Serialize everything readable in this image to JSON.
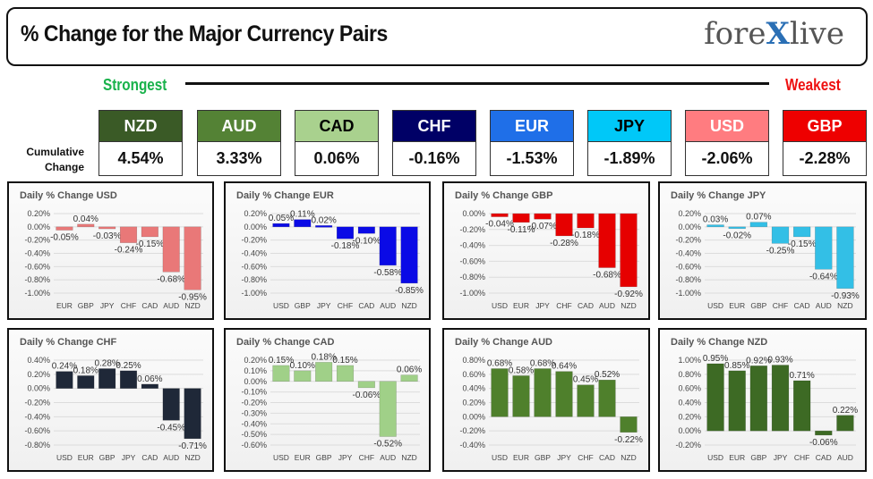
{
  "header": {
    "title": "% Change for the Major Currency Pairs",
    "logo": "forexlive"
  },
  "ranking": {
    "strongest_label": "Strongest",
    "weakest_label": "Weakest",
    "row_label": "Cumulative Change",
    "currencies": [
      {
        "code": "NZD",
        "value": "4.54%",
        "color": "#3a5a26",
        "text_color": "#ffffff"
      },
      {
        "code": "AUD",
        "value": "3.33%",
        "color": "#548235",
        "text_color": "#ffffff"
      },
      {
        "code": "CAD",
        "value": "0.06%",
        "color": "#a9d18e",
        "text_color": "#000000"
      },
      {
        "code": "CHF",
        "value": "-0.16%",
        "color": "#000066",
        "text_color": "#ffffff"
      },
      {
        "code": "EUR",
        "value": "-1.53%",
        "color": "#1f6fe8",
        "text_color": "#ffffff"
      },
      {
        "code": "JPY",
        "value": "-1.89%",
        "color": "#00c8f8",
        "text_color": "#000000"
      },
      {
        "code": "USD",
        "value": "-2.06%",
        "color": "#ff7c80",
        "text_color": "#ffffff"
      },
      {
        "code": "GBP",
        "value": "-2.28%",
        "color": "#ee0000",
        "text_color": "#ffffff"
      }
    ]
  },
  "chart_data": [
    {
      "type": "bar",
      "title": "Daily % Change USD",
      "categories": [
        "EUR",
        "GBP",
        "JPY",
        "CHF",
        "CAD",
        "AUD",
        "NZD"
      ],
      "values": [
        -0.05,
        0.04,
        -0.03,
        -0.24,
        -0.15,
        -0.68,
        -0.95
      ],
      "ylim": [
        -1.0,
        0.2
      ],
      "ystep": 0.2,
      "color": "#e97878",
      "grid": true
    },
    {
      "type": "bar",
      "title": "Daily % Change EUR",
      "categories": [
        "USD",
        "GBP",
        "JPY",
        "CHF",
        "CAD",
        "AUD",
        "NZD"
      ],
      "values": [
        0.05,
        0.11,
        0.02,
        -0.18,
        -0.1,
        -0.58,
        -0.85
      ],
      "ylim": [
        -1.0,
        0.2
      ],
      "ystep": 0.2,
      "color": "#0a0ae6",
      "grid": true
    },
    {
      "type": "bar",
      "title": "Daily % Change GBP",
      "categories": [
        "USD",
        "EUR",
        "JPY",
        "CHF",
        "CAD",
        "AUD",
        "NZD"
      ],
      "values": [
        -0.04,
        -0.11,
        -0.07,
        -0.28,
        -0.18,
        -0.68,
        -0.92
      ],
      "ylim": [
        -1.0,
        0.0
      ],
      "ystep": 0.2,
      "color": "#e60000",
      "grid": true
    },
    {
      "type": "bar",
      "title": "Daily % Change JPY",
      "categories": [
        "USD",
        "EUR",
        "GBP",
        "CHF",
        "CAD",
        "AUD",
        "NZD"
      ],
      "values": [
        0.03,
        -0.02,
        0.07,
        -0.25,
        -0.15,
        -0.64,
        -0.93
      ],
      "ylim": [
        -1.0,
        0.2
      ],
      "ystep": 0.2,
      "color": "#33bfe6",
      "grid": true
    },
    {
      "type": "bar",
      "title": "Daily % Change CHF",
      "categories": [
        "USD",
        "EUR",
        "GBP",
        "JPY",
        "CAD",
        "AUD",
        "NZD"
      ],
      "values": [
        0.24,
        0.18,
        0.28,
        0.25,
        0.06,
        -0.45,
        -0.71
      ],
      "ylim": [
        -0.8,
        0.4
      ],
      "ystep": 0.2,
      "color": "#1f2838",
      "grid": true
    },
    {
      "type": "bar",
      "title": "Daily % Change CAD",
      "categories": [
        "USD",
        "EUR",
        "GBP",
        "JPY",
        "CHF",
        "AUD",
        "NZD"
      ],
      "values": [
        0.15,
        0.1,
        0.18,
        0.15,
        -0.06,
        -0.52,
        0.06
      ],
      "ylim": [
        -0.6,
        0.2
      ],
      "ystep": 0.1,
      "color": "#a0d088",
      "grid": true
    },
    {
      "type": "bar",
      "title": "Daily % Change AUD",
      "categories": [
        "USD",
        "EUR",
        "GBP",
        "JPY",
        "CHF",
        "CAD",
        "NZD"
      ],
      "values": [
        0.68,
        0.58,
        0.68,
        0.64,
        0.45,
        0.52,
        -0.22
      ],
      "ylim": [
        -0.4,
        0.8
      ],
      "ystep": 0.2,
      "color": "#4f802c",
      "grid": true
    },
    {
      "type": "bar",
      "title": "Daily % Change NZD",
      "categories": [
        "USD",
        "EUR",
        "GBP",
        "JPY",
        "CHF",
        "CAD",
        "AUD"
      ],
      "values": [
        0.95,
        0.85,
        0.92,
        0.93,
        0.71,
        -0.06,
        0.22
      ],
      "ylim": [
        -0.2,
        1.0
      ],
      "ystep": 0.2,
      "color": "#3d6a24",
      "grid": true
    }
  ]
}
